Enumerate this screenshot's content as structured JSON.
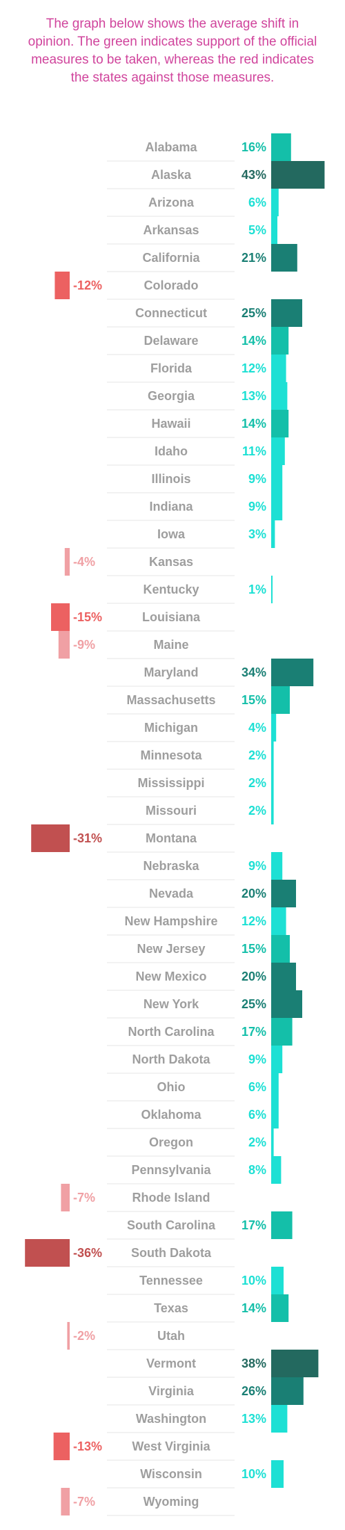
{
  "intro_text": "The graph below shows the average shift in opinion. The green indicates support of the official measures to be taken, whereas the red indicates the states against those measures.",
  "colors": {
    "positive_light": "#1de0d4",
    "positive_mid": "#14bfa9",
    "positive_dark": "#1a7f74",
    "positive_darkest": "#23695f",
    "negative_light": "#f0a0a4",
    "negative_mid": "#ec6161",
    "negative_dark": "#c15050",
    "state_label": "#9e9e9e",
    "row_line": "#e6e6e6"
  },
  "chart_data": {
    "type": "bar",
    "orientation": "horizontal-diverging",
    "unit": "%",
    "categories": [
      "Alabama",
      "Alaska",
      "Arizona",
      "Arkansas",
      "California",
      "Colorado",
      "Connecticut",
      "Delaware",
      "Florida",
      "Georgia",
      "Hawaii",
      "Idaho",
      "Illinois",
      "Indiana",
      "Iowa",
      "Kansas",
      "Kentucky",
      "Louisiana",
      "Maine",
      "Maryland",
      "Massachusetts",
      "Michigan",
      "Minnesota",
      "Mississippi",
      "Missouri",
      "Montana",
      "Nebraska",
      "Nevada",
      "New Hampshire",
      "New Jersey",
      "New Mexico",
      "New York",
      "North Carolina",
      "North Dakota",
      "Ohio",
      "Oklahoma",
      "Oregon",
      "Pennsylvania",
      "Rhode Island",
      "South Carolina",
      "South Dakota",
      "Tennessee",
      "Texas",
      "Utah",
      "Vermont",
      "Virginia",
      "Washington",
      "West Virginia",
      "Wisconsin",
      "Wyoming"
    ],
    "values": [
      16,
      43,
      6,
      5,
      21,
      -12,
      25,
      14,
      12,
      13,
      14,
      11,
      9,
      9,
      3,
      -4,
      1,
      -15,
      -9,
      34,
      15,
      4,
      2,
      2,
      2,
      -31,
      9,
      20,
      12,
      15,
      20,
      25,
      17,
      9,
      6,
      6,
      2,
      8,
      -7,
      17,
      -36,
      10,
      14,
      -2,
      38,
      26,
      13,
      -13,
      10,
      -7
    ],
    "value_labels": [
      "16%",
      "43%",
      "6%",
      "5%",
      "21%",
      "-12%",
      "25%",
      "14%",
      "12%",
      "13%",
      "14%",
      "11%",
      "9%",
      "9%",
      "3%",
      "-4%",
      "1%",
      "-15%",
      "-9%",
      "34%",
      "15%",
      "4%",
      "2%",
      "2%",
      "2%",
      "-31%",
      "9%",
      "20%",
      "12%",
      "15%",
      "20%",
      "25%",
      "17%",
      "9%",
      "6%",
      "6%",
      "2%",
      "8%",
      "-7%",
      "17%",
      "-36%",
      "10%",
      "14%",
      "-2%",
      "38%",
      "26%",
      "13%",
      "-13%",
      "10%",
      "-7%"
    ],
    "grid": false,
    "legend": "none"
  }
}
